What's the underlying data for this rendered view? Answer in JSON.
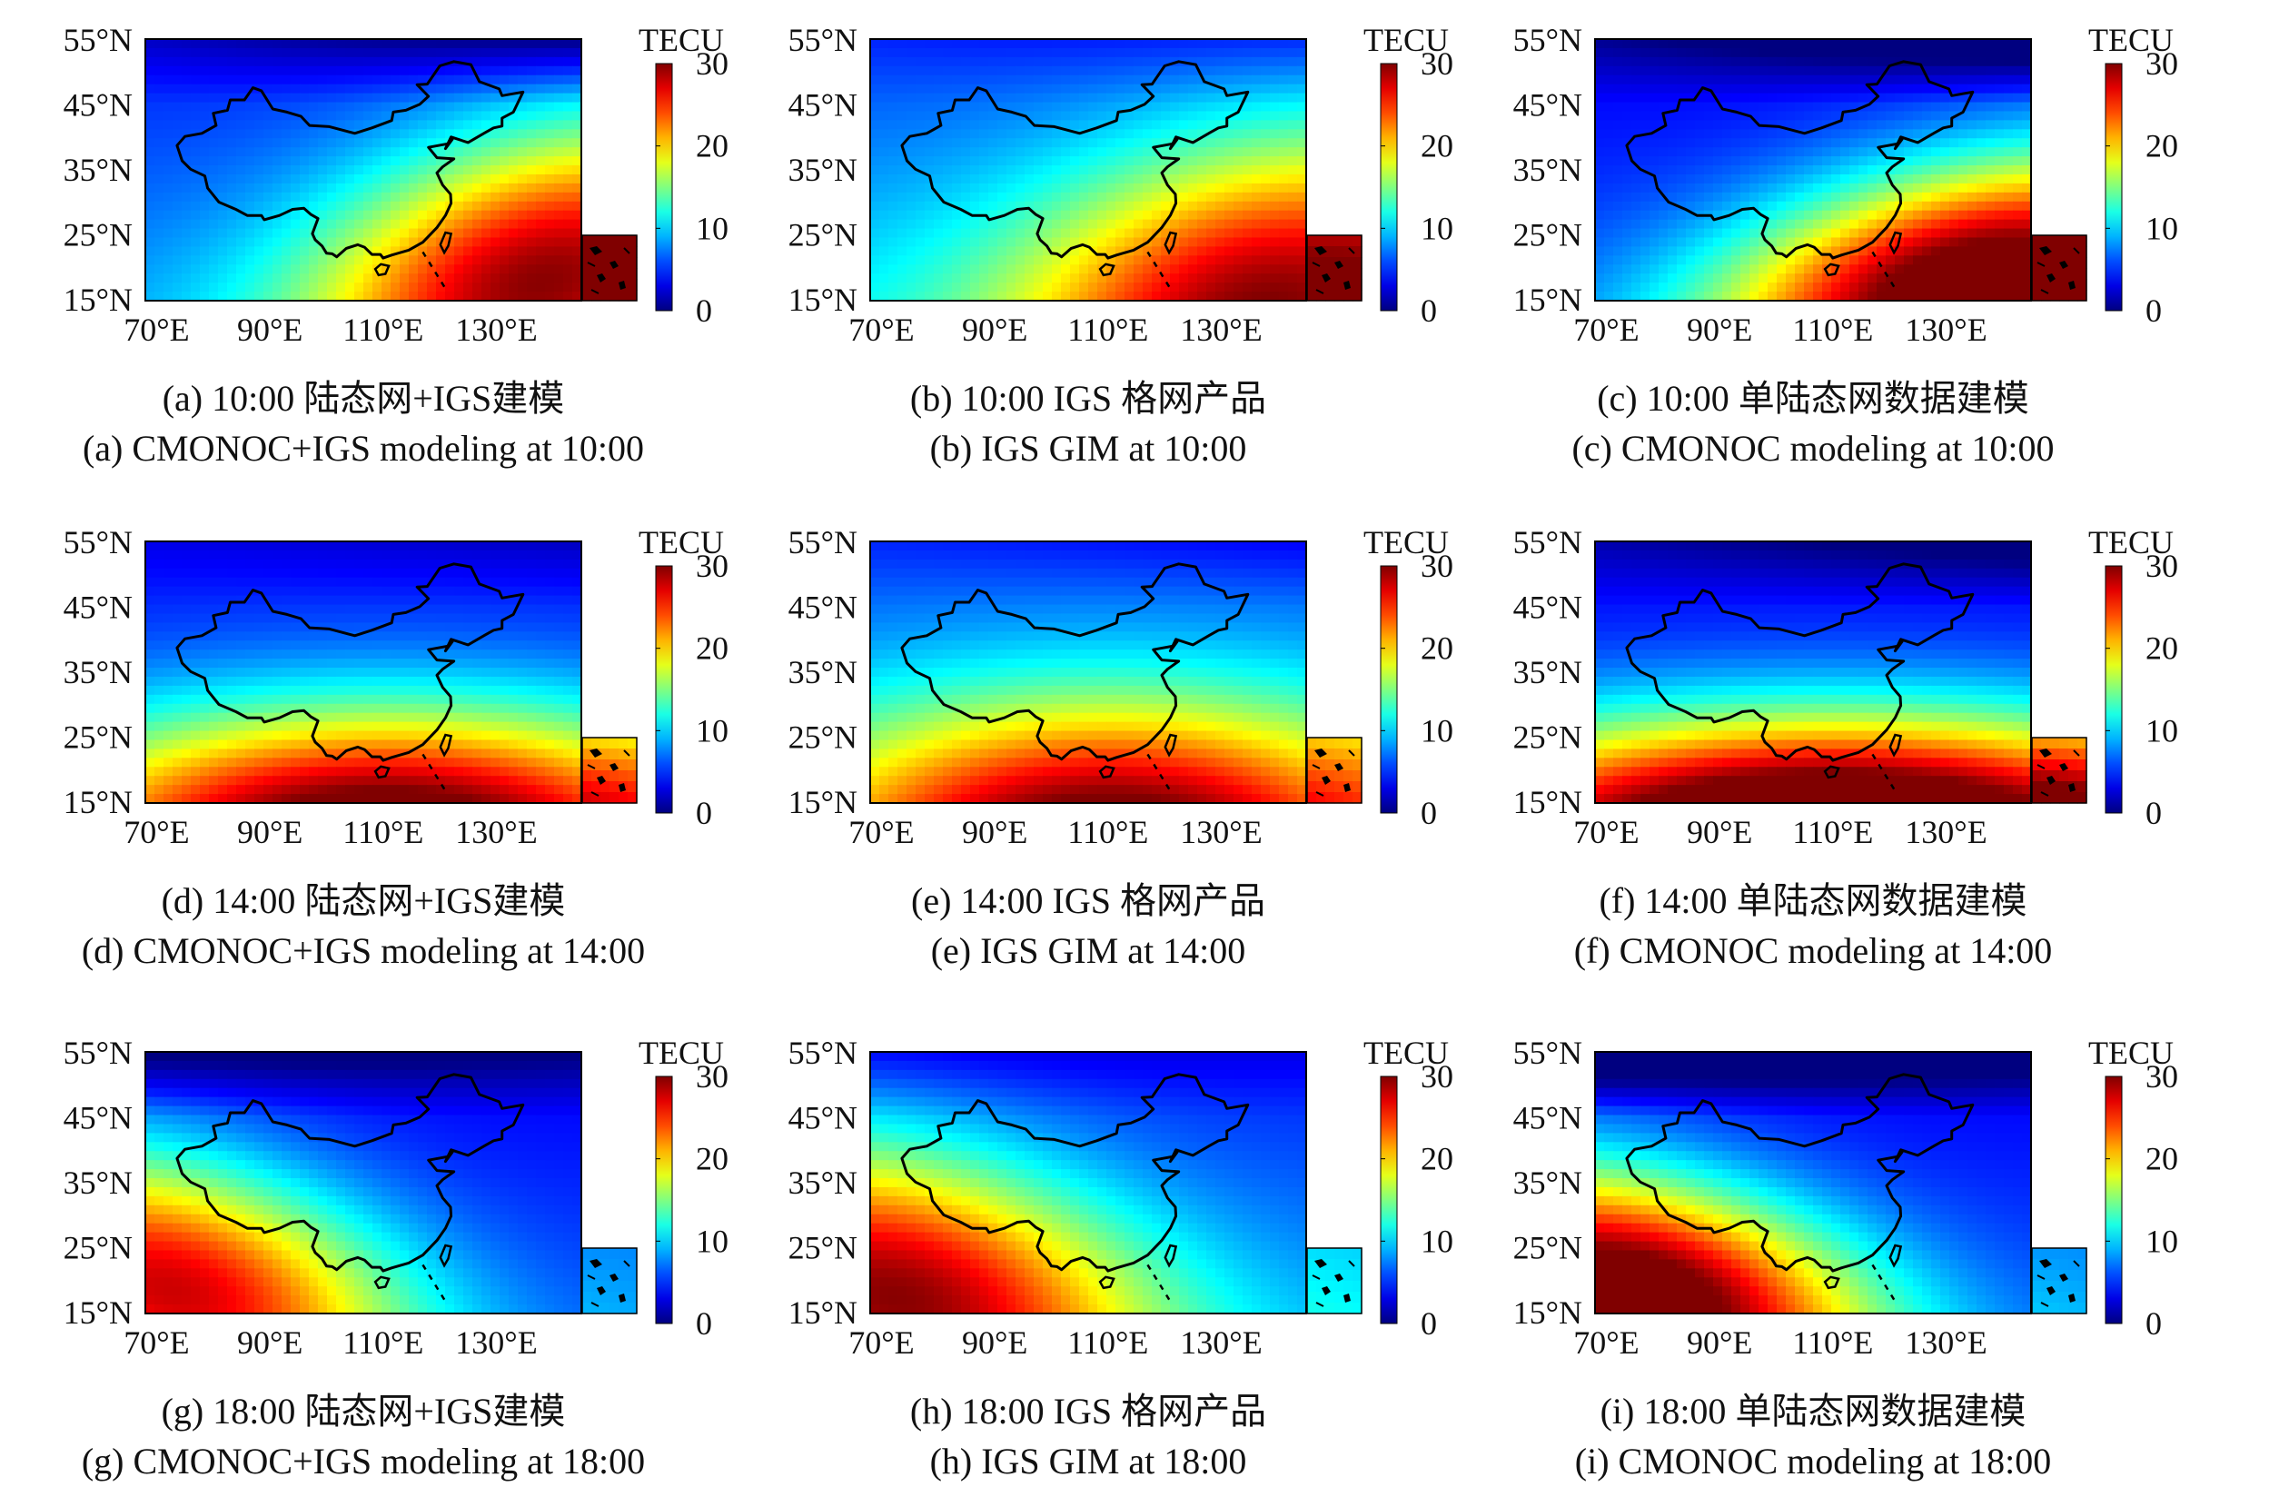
{
  "colorbar": {
    "title": "TECU",
    "ticks": [
      "30",
      "20",
      "10",
      "0"
    ],
    "range": [
      0,
      30
    ]
  },
  "axes": {
    "lat_ticks": [
      "55°N",
      "45°N",
      "35°N",
      "25°N",
      "15°N"
    ],
    "lon_ticks": [
      "70°E",
      "90°E",
      "110°E",
      "130°E"
    ]
  },
  "panels": [
    {
      "id": "a",
      "caption_cn": "(a) 10:00 陆态网+IGS建模",
      "caption_en": "(a) CMONOC+IGS modeling at 10:00",
      "time": "10:00",
      "source": "CMONOC+IGS"
    },
    {
      "id": "b",
      "caption_cn": "(b) 10:00 IGS 格网产品",
      "caption_en": "(b) IGS GIM at 10:00",
      "time": "10:00",
      "source": "IGS GIM"
    },
    {
      "id": "c",
      "caption_cn": "(c) 10:00 单陆态网数据建模",
      "caption_en": "(c) CMONOC modeling at 10:00",
      "time": "10:00",
      "source": "CMONOC"
    },
    {
      "id": "d",
      "caption_cn": "(d) 14:00 陆态网+IGS建模",
      "caption_en": "(d) CMONOC+IGS modeling at 14:00",
      "time": "14:00",
      "source": "CMONOC+IGS"
    },
    {
      "id": "e",
      "caption_cn": "(e) 14:00 IGS 格网产品",
      "caption_en": "(e) IGS GIM at 14:00",
      "time": "14:00",
      "source": "IGS GIM"
    },
    {
      "id": "f",
      "caption_cn": "(f) 14:00 单陆态网数据建模",
      "caption_en": "(f) CMONOC modeling at 14:00",
      "time": "14:00",
      "source": "CMONOC"
    },
    {
      "id": "g",
      "caption_cn": "(g) 18:00 陆态网+IGS建模",
      "caption_en": "(g) CMONOC+IGS modeling at 18:00",
      "time": "18:00",
      "source": "CMONOC+IGS"
    },
    {
      "id": "h",
      "caption_cn": "(h) 18:00 IGS 格网产品",
      "caption_en": "(h) IGS GIM at 18:00",
      "time": "18:00",
      "source": "IGS GIM"
    },
    {
      "id": "i",
      "caption_cn": "(i) 18:00 单陆态网数据建模",
      "caption_en": "(i) CMONOC modeling at 18:00",
      "time": "18:00",
      "source": "CMONOC"
    }
  ]
}
